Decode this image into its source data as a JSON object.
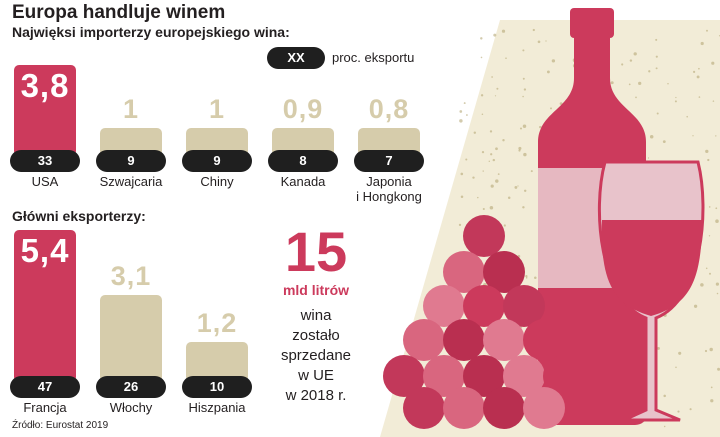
{
  "header": {
    "title": "Europa handluje winem",
    "subtitle": "Najwięksi importerzy europejskiego wina:"
  },
  "legend": {
    "pill": "XX",
    "label": "proc. eksportu"
  },
  "colors": {
    "highlight": "#cc3a5c",
    "muted": "#d6ccab",
    "pill": "#1f1f1f"
  },
  "chart_data": [
    {
      "type": "bar",
      "title": "Najwięksi importerzy europejskiego wina:",
      "categories": [
        "USA",
        "Szwajcaria",
        "Chiny",
        "Kanada",
        "Japonia i Hongkong"
      ],
      "category_lines": [
        [
          "USA"
        ],
        [
          "Szwajcaria"
        ],
        [
          "Chiny"
        ],
        [
          "Kanada"
        ],
        [
          "Japonia",
          "i Hongkong"
        ]
      ],
      "value_labels": [
        "3,8",
        "1",
        "1",
        "0,9",
        "0,8"
      ],
      "values": [
        3.8,
        1.0,
        1.0,
        0.9,
        0.8
      ],
      "share_labels": [
        "33",
        "9",
        "9",
        "8",
        "7"
      ],
      "shares": [
        33,
        9,
        9,
        8,
        7
      ],
      "ylim": [
        0,
        5.4
      ],
      "grid": false
    },
    {
      "type": "bar",
      "title": "Główni eksporterzy:",
      "categories": [
        "Francja",
        "Włochy",
        "Hiszpania"
      ],
      "category_lines": [
        [
          "Francja"
        ],
        [
          "Włochy"
        ],
        [
          "Hiszpania"
        ]
      ],
      "value_labels": [
        "5,4",
        "3,1",
        "1,2"
      ],
      "values": [
        5.4,
        3.1,
        1.2
      ],
      "share_labels": [
        "47",
        "26",
        "10"
      ],
      "shares": [
        47,
        26,
        10
      ],
      "ylim": [
        0,
        5.4
      ],
      "grid": false
    }
  ],
  "callout": {
    "number": "15",
    "unit": "mld litrów",
    "lines": [
      "wina",
      "zostało",
      "sprzedane",
      "w UE",
      "w 2018 r."
    ]
  },
  "source": "Źródło: Eurostat 2019"
}
